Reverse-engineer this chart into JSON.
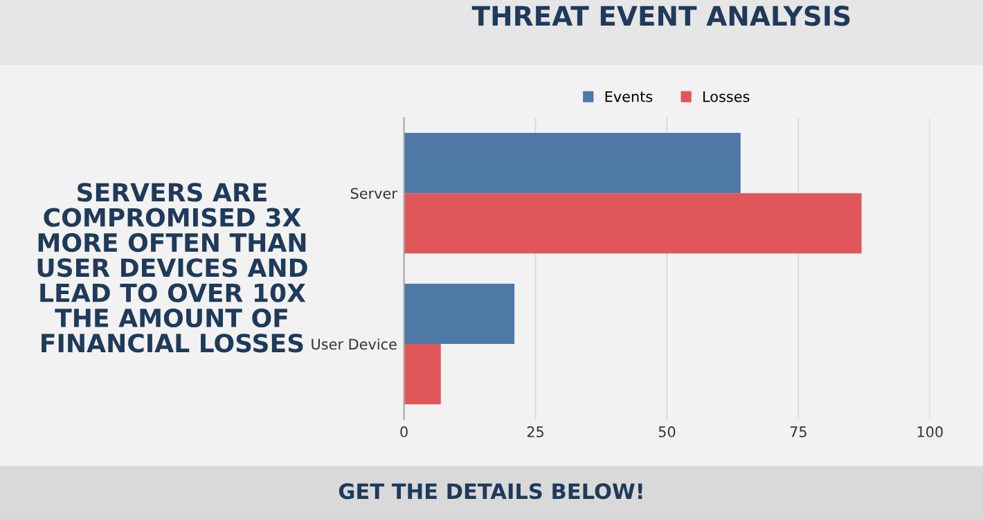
{
  "chart_data": {
    "type": "bar",
    "orientation": "horizontal",
    "title": "THREAT EVENT ANALYSIS",
    "categories": [
      "Server",
      "User Device"
    ],
    "series": [
      {
        "name": "Events",
        "color": "#4e79a7",
        "values": [
          64,
          21
        ]
      },
      {
        "name": "Losses",
        "color": "#e15759",
        "values": [
          87,
          7
        ]
      }
    ],
    "xlim": [
      0,
      100
    ],
    "xticks": [
      0,
      25,
      50,
      75,
      100
    ],
    "grid": "x",
    "legend": "top",
    "annotations": [
      "SERVERS ARE\nCOMPROMISED 3X\nMORE OFTEN THAN\nUSER DEVICES AND\nLEAD TO OVER 10X\nTHE AMOUNT OF\nFINANCIAL LOSSES",
      "GET THE DETAILS BELOW!"
    ]
  }
}
